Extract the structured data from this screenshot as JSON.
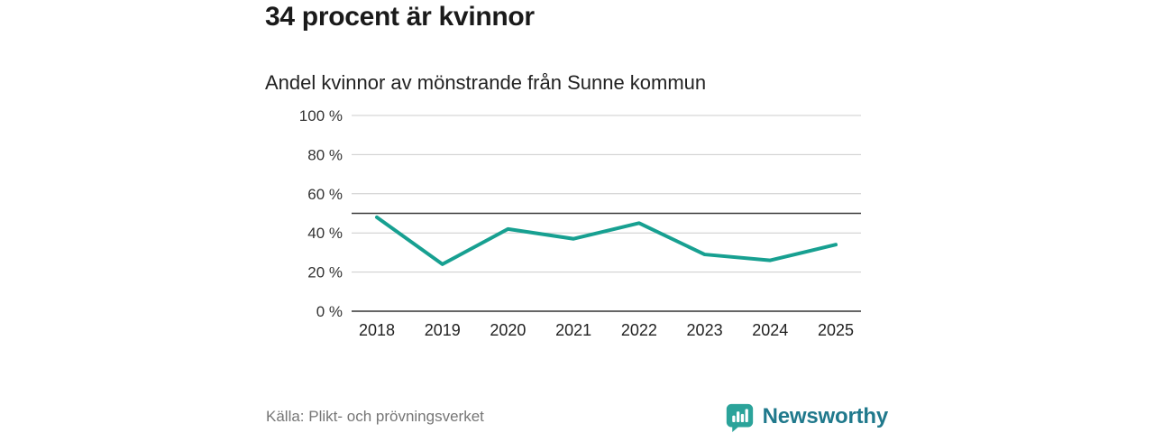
{
  "page": {
    "source": "Källa: Plikt- och prövningsverket",
    "brand": {
      "name": "Newsworthy",
      "icon": "bar-chart-speech-bubble-icon",
      "icon_color": "#2BA39A",
      "text_color": "#20798C"
    }
  },
  "chart_data": {
    "type": "line",
    "title": "34 procent är kvinnor",
    "subtitle": "Andel kvinnor av mönstrande från Sunne kommun",
    "categories": [
      "2018",
      "2019",
      "2020",
      "2021",
      "2022",
      "2023",
      "2024",
      "2025"
    ],
    "series": [
      {
        "name": "Andel kvinnor av mönstrande",
        "values": [
          48,
          24,
          42,
          37,
          45,
          29,
          26,
          34
        ]
      }
    ],
    "unit": "%",
    "ylim": [
      0,
      100
    ],
    "yticks": [
      0,
      20,
      40,
      60,
      80,
      100
    ],
    "ytick_suffix": " %",
    "reference_line": 50,
    "grid": true,
    "legend": "none",
    "xlabel": "",
    "ylabel": "",
    "line_color": "#17A091",
    "grid_color": "#cccccc",
    "axis_color": "#333333",
    "reference_line_color": "#3d3d3d"
  }
}
